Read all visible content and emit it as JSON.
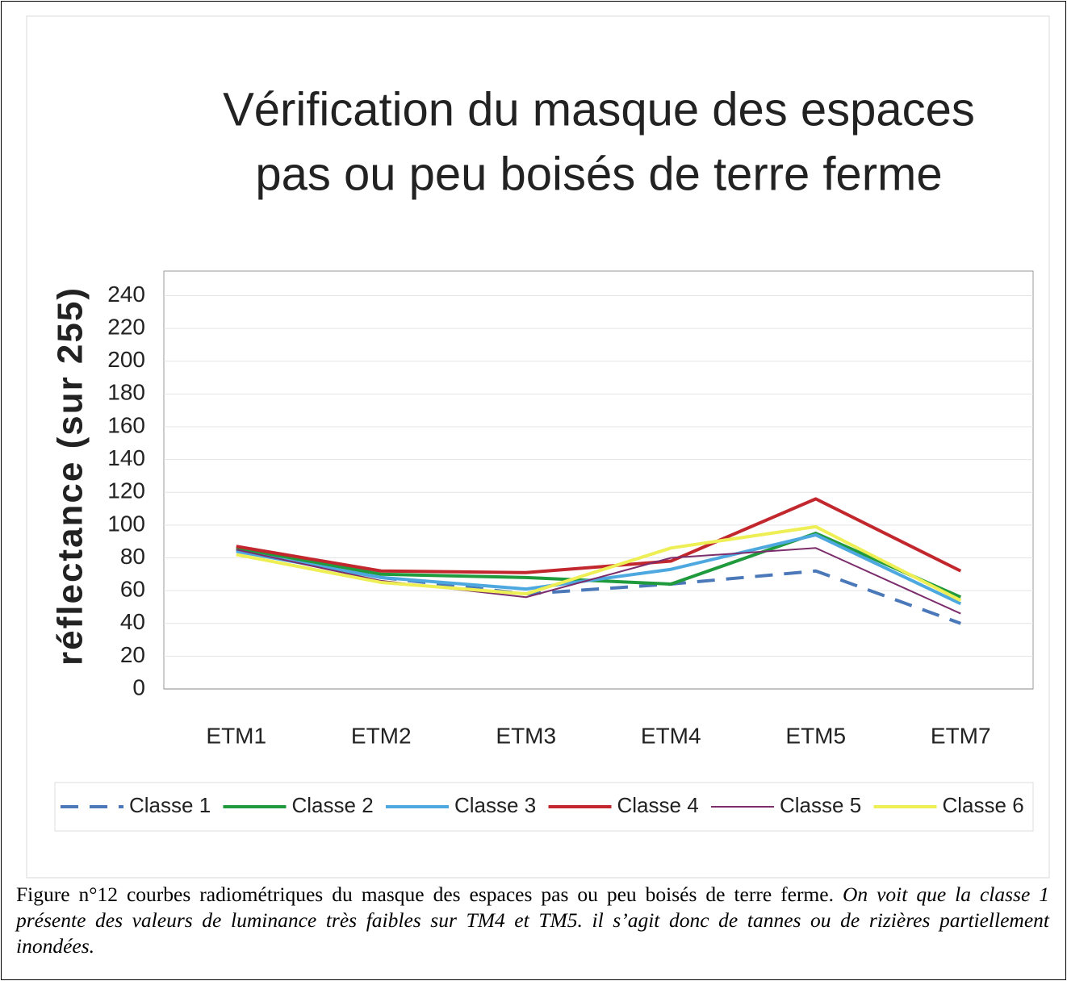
{
  "chart_data": {
    "type": "line",
    "title": [
      "Vérification du masque des espaces",
      "pas ou peu boisés de terre ferme"
    ],
    "y_label": "réflectance (sur 255)",
    "categories": [
      "ETM1",
      "ETM2",
      "ETM3",
      "ETM4",
      "ETM5",
      "ETM7"
    ],
    "ylim": [
      0,
      255
    ],
    "yticks": [
      0,
      20,
      40,
      60,
      80,
      100,
      120,
      140,
      160,
      180,
      200,
      220,
      240
    ],
    "grid": true,
    "legend": "bottom",
    "series": [
      {
        "name": "Classe 1",
        "color": "#4a78b8",
        "dashed": true,
        "values": [
          85,
          68,
          58,
          64,
          72,
          40
        ]
      },
      {
        "name": "Classe 2",
        "color": "#1f9a3c",
        "values": [
          86,
          70,
          68,
          64,
          95,
          56
        ]
      },
      {
        "name": "Classe 3",
        "color": "#4ea8e0",
        "values": [
          84,
          68,
          61,
          73,
          94,
          52
        ]
      },
      {
        "name": "Classe 4",
        "color": "#c1272d",
        "values": [
          87,
          72,
          71,
          78,
          116,
          72
        ]
      },
      {
        "name": "Classe 5",
        "color": "#7b2d6c",
        "thin": true,
        "values": [
          85,
          66,
          56,
          80,
          86,
          46
        ]
      },
      {
        "name": "Classe 6",
        "color": "#eeee55",
        "values": [
          82,
          65,
          58,
          86,
          99,
          54
        ]
      }
    ]
  },
  "caption": {
    "text": "Figure n°12 courbes radiométriques du masque des espaces pas ou peu boisés de terre ferme.",
    "italic_text": "On voit que la classe 1 présente des valeurs de luminance très faibles sur TM4 et TM5. il s’agit donc de tannes ou de rizières partiellement inondées."
  }
}
